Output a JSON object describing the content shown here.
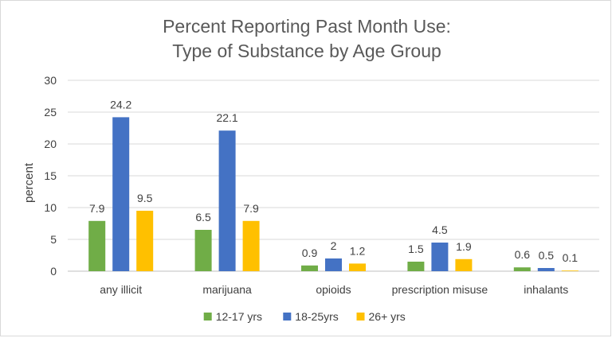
{
  "chart_data": {
    "type": "bar",
    "title_lines": [
      "Percent Reporting Past Month Use:",
      "Type of Substance by Age Group"
    ],
    "xlabel": "",
    "ylabel": "percent",
    "ylim": [
      0,
      30
    ],
    "yticks": [
      0,
      5,
      10,
      15,
      20,
      25,
      30
    ],
    "grid": true,
    "legend_position": "bottom",
    "categories": [
      "any illicit",
      "marijuana",
      "opioids",
      "prescription misuse",
      "inhalants"
    ],
    "series": [
      {
        "name": "12-17 yrs",
        "color": "#70ad47",
        "values": [
          7.9,
          6.5,
          0.9,
          1.5,
          0.6
        ]
      },
      {
        "name": "18-25yrs",
        "color": "#4472c4",
        "values": [
          24.2,
          22.1,
          2,
          4.5,
          0.5
        ]
      },
      {
        "name": "26+ yrs",
        "color": "#ffc000",
        "values": [
          9.5,
          7.9,
          1.2,
          1.9,
          0.1
        ]
      }
    ]
  }
}
